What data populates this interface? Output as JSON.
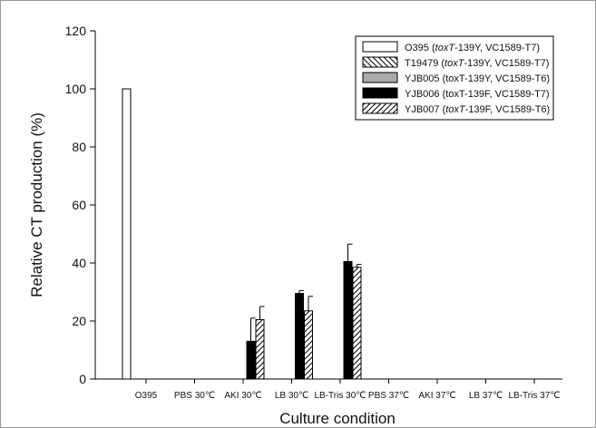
{
  "chart_data": {
    "type": "bar",
    "title": "",
    "xlabel": "Culture condition",
    "ylabel": "Relative CT production (%)",
    "ylim": [
      0,
      120
    ],
    "yticks": [
      0,
      20,
      40,
      60,
      80,
      100,
      120
    ],
    "categories": [
      "O395",
      "PBS 30℃",
      "AKI 30℃",
      "LB 30℃",
      "LB-Tris 30℃",
      "PBS 37℃",
      "AKI 37℃",
      "LB 37℃",
      "LB-Tris 37℃"
    ],
    "legend_position": "top-right",
    "grid": false,
    "series": [
      {
        "name": "O395 (toxT-139Y, VC1589-T7)",
        "name_parts": [
          "O395 (",
          "toxT",
          "-139Y, VC1589-T7)"
        ],
        "fill": "white",
        "values": [
          100,
          0,
          0,
          0,
          0,
          0,
          0,
          0,
          0
        ],
        "errors": [
          0,
          0,
          0,
          0,
          0,
          0,
          0,
          0,
          0
        ]
      },
      {
        "name": "T19479 (toxT-139Y, VC1589-T7)",
        "name_parts": [
          "T19479 (",
          "toxT",
          "-139Y, VC1589-T7)"
        ],
        "fill": "backslash-hatch",
        "values": [
          0,
          0,
          0,
          0,
          0,
          0,
          0,
          0,
          0
        ],
        "errors": [
          0,
          0,
          0,
          0,
          0,
          0,
          0,
          0,
          0
        ]
      },
      {
        "name": "YJB005 (toxT-139Y, VC1589-T6)",
        "name_parts": [
          "YJB005 (toxT-139Y, VC1589-T6)",
          "",
          ""
        ],
        "fill": "#a9a9a9",
        "values": [
          0,
          0,
          0,
          0,
          0,
          0,
          0,
          0,
          0
        ],
        "errors": [
          0,
          0,
          0,
          0,
          0,
          0,
          0,
          0,
          0
        ]
      },
      {
        "name": "YJB006 (toxT-139F, VC1589-T7)",
        "name_parts": [
          "YJB006 (toxT-139F, VC1589-T7)",
          "",
          ""
        ],
        "fill": "#000000",
        "values": [
          0,
          0,
          13,
          29.5,
          40.5,
          0,
          0,
          0,
          0
        ],
        "errors": [
          0,
          0,
          8,
          1,
          6,
          0,
          0,
          0,
          0
        ]
      },
      {
        "name": "YJB007 (toxT-139F, VC1589-T6)",
        "name_parts": [
          "YJB007 (",
          "toxT",
          "-139F, VC1589-T6)"
        ],
        "fill": "slash-hatch",
        "values": [
          0,
          0,
          20.5,
          23.5,
          38.5,
          0,
          0,
          0,
          0
        ],
        "errors": [
          0,
          0,
          4.5,
          5,
          1,
          0,
          0,
          0,
          0
        ]
      }
    ]
  }
}
